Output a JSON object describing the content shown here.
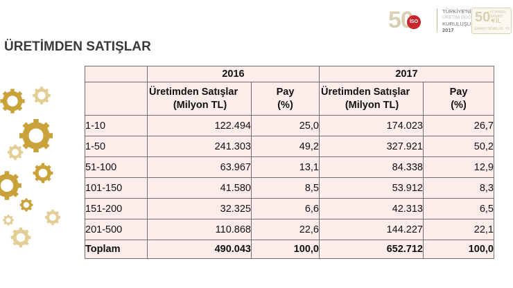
{
  "title": "ÜRETİMDEN SATIŞLAR",
  "logo": {
    "number": "50",
    "badge": "İSO",
    "line1": "TÜRKİYE'NİN",
    "line2": "ÜRETİM GÜCÜ ODASI",
    "line3": "KURULUŞU",
    "year": "2017",
    "anniversary_number": "50.",
    "anniversary_suffix": "YIL",
    "anniversary_top": "İSTANBUL SANAYİ",
    "anniversary_bottom": "SANAYİ ODASI 50. YIL"
  },
  "table": {
    "years": [
      "2016",
      "2017"
    ],
    "col_sales_line1": "Üretimden Satışlar",
    "col_sales_line2": "(Milyon TL)",
    "col_share_line1": "Pay",
    "col_share_line2": "(%)",
    "rows": [
      {
        "label": "1-10",
        "s2016": "122.494",
        "p2016": "25,0",
        "s2017": "174.023",
        "p2017": "26,7"
      },
      {
        "label": "1-50",
        "s2016": "241.303",
        "p2016": "49,2",
        "s2017": "327.921",
        "p2017": "50,2"
      },
      {
        "label": "51-100",
        "s2016": "63.967",
        "p2016": "13,1",
        "s2017": "84.338",
        "p2017": "12,9"
      },
      {
        "label": "101-150",
        "s2016": "41.580",
        "p2016": "8,5",
        "s2017": "53.912",
        "p2017": "8,3"
      },
      {
        "label": "151-200",
        "s2016": "32.325",
        "p2016": "6,6",
        "s2017": "42.313",
        "p2017": "6,5"
      },
      {
        "label": "201-500",
        "s2016": "110.868",
        "p2016": "22,6",
        "s2017": "144.227",
        "p2017": "22,1"
      }
    ],
    "total": {
      "label": "Toplam",
      "s2016": "490.043",
      "p2016": "100,0",
      "s2017": "652.712",
      "p2017": "100,0"
    }
  },
  "colors": {
    "gold": "#c9a23a",
    "table_bg": "#fcecea",
    "badge_red": "#c8252c"
  }
}
